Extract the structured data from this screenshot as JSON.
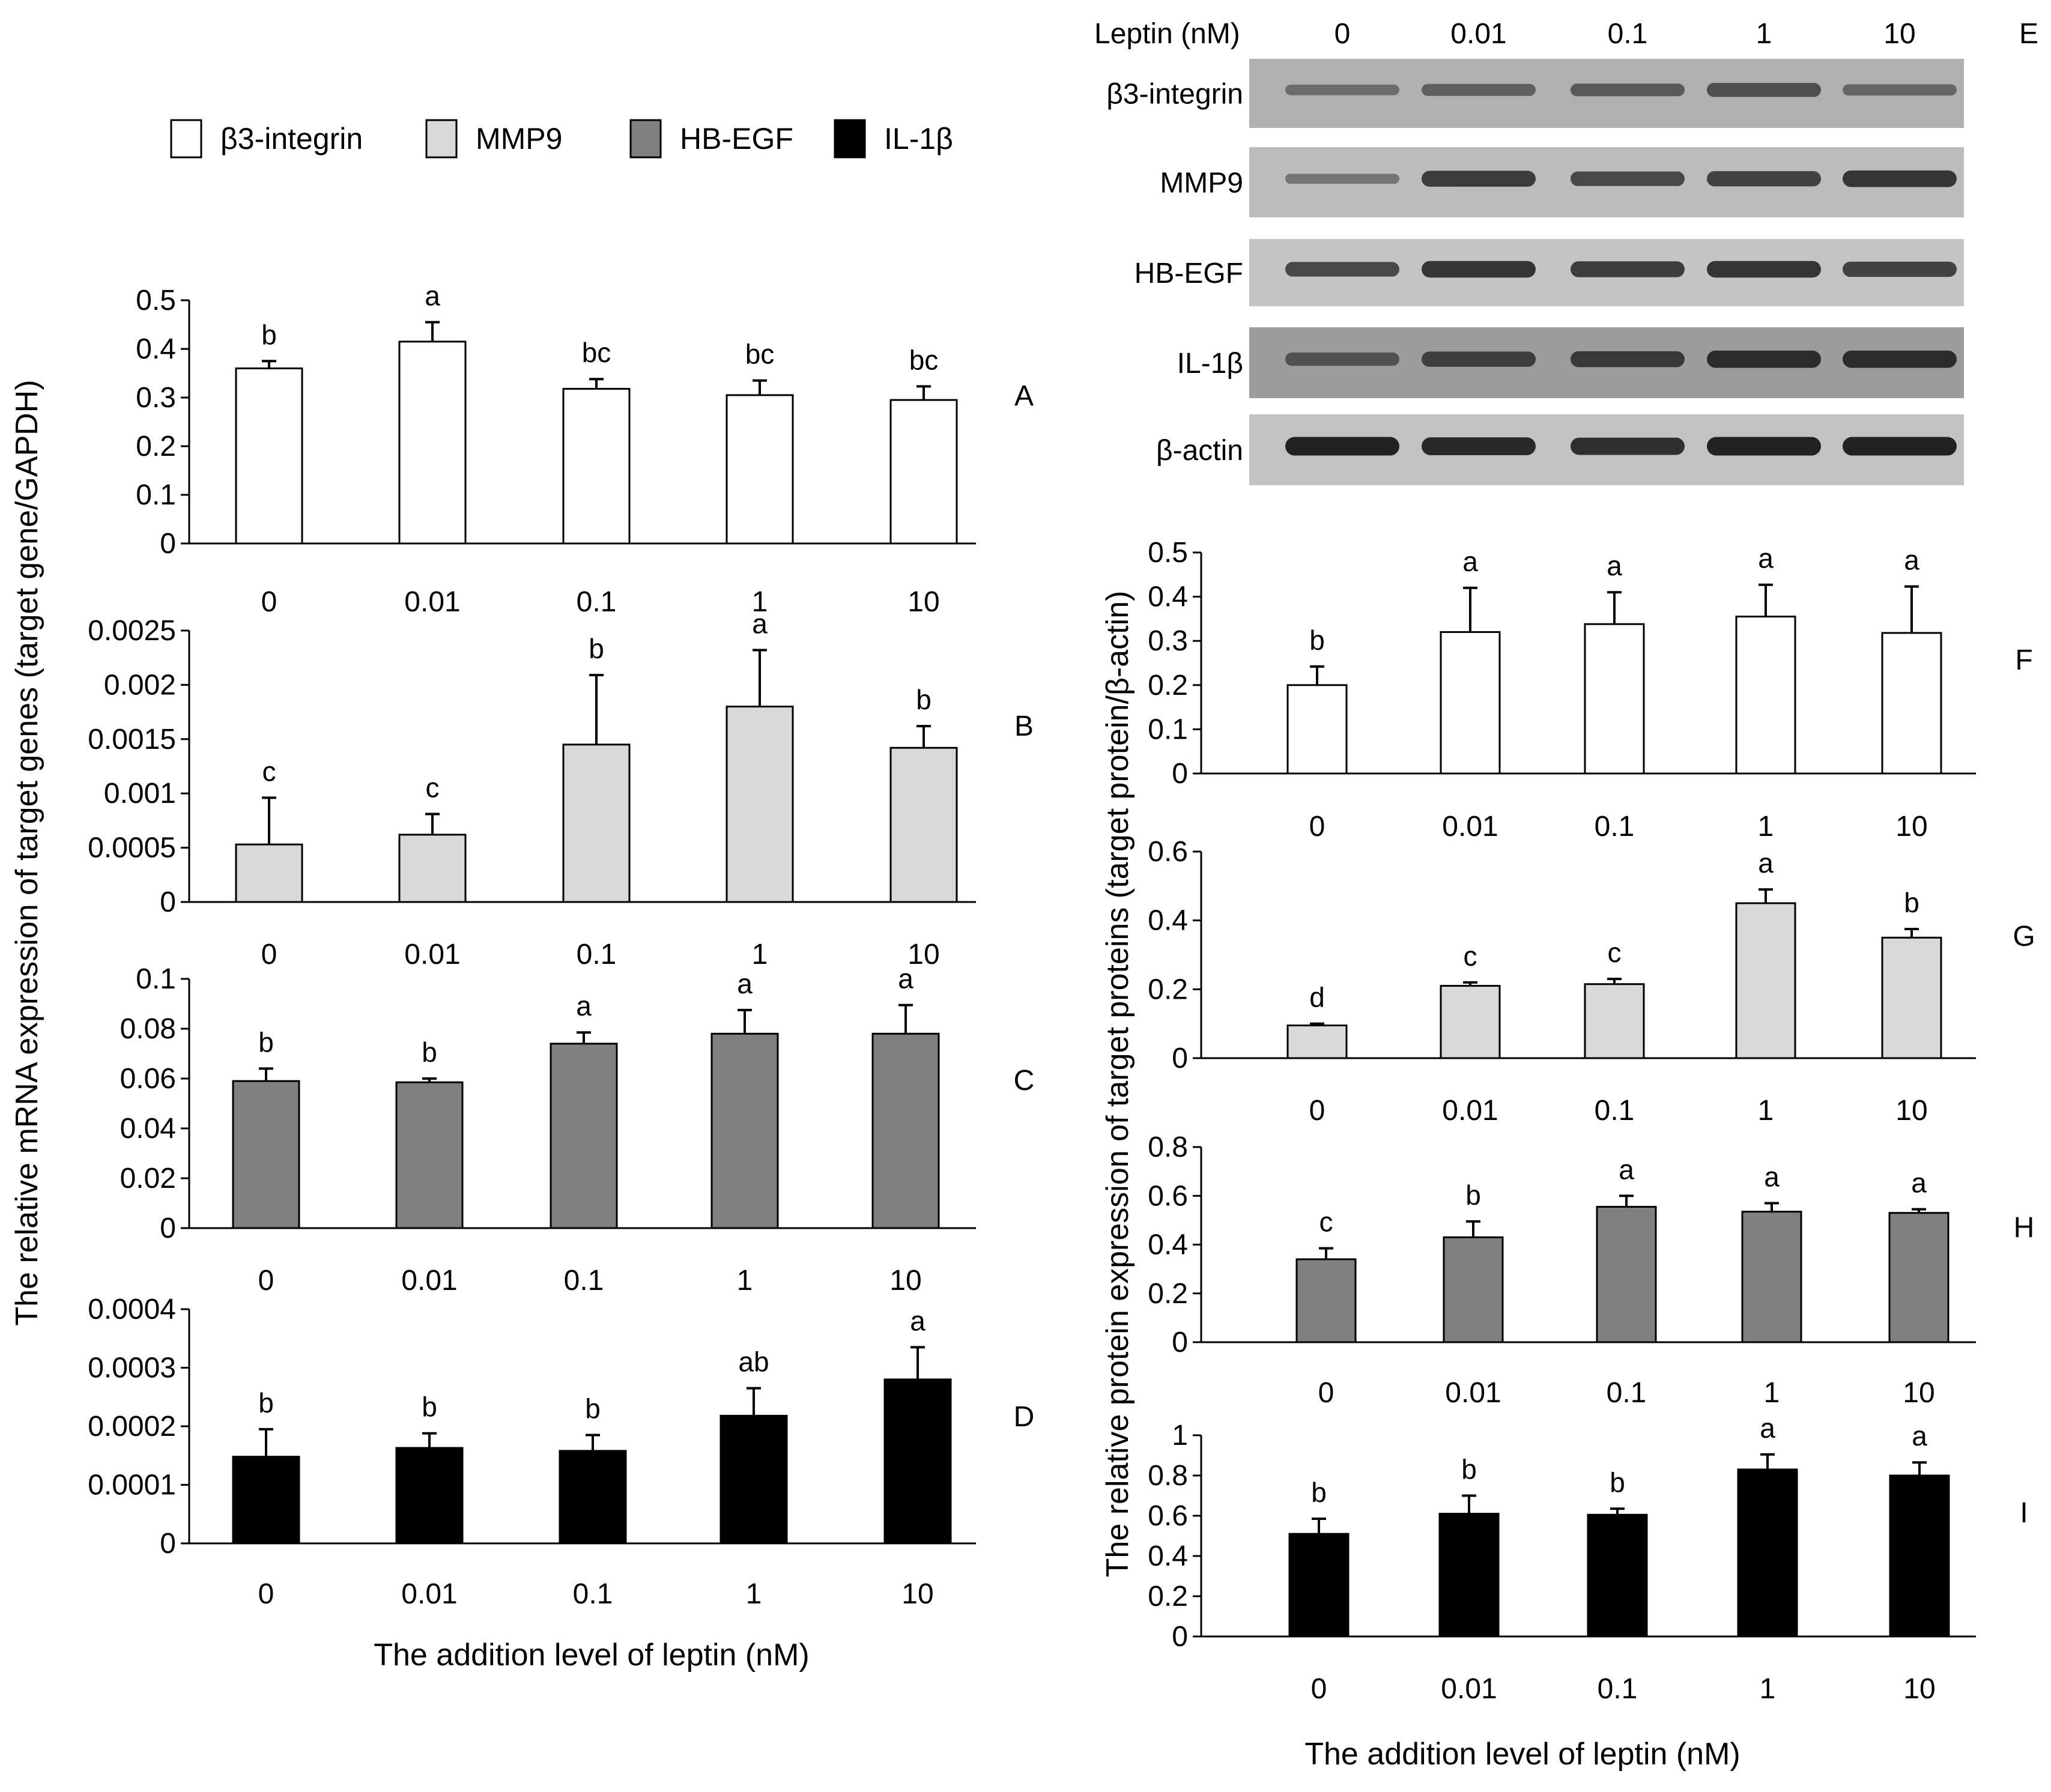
{
  "legend": [
    {
      "label": "β3-integrin",
      "color": "#ffffff"
    },
    {
      "label": "MMP9",
      "color": "#d9d9d9"
    },
    {
      "label": "HB-EGF",
      "color": "#808080"
    },
    {
      "label": "IL-1β",
      "color": "#000000"
    }
  ],
  "left_ylabel": "The relative mRNA expression  of target genes (target gene/GAPDH)",
  "left_xlabel": "The addition level of leptin (nM)",
  "right_ylabel": "The relative protein expression of target proteins  (target protein/β-actin)",
  "right_xlabel": "The addition level of leptin (nM)",
  "western_blot": {
    "panel": "E",
    "header_label": "Leptin (nM)",
    "doses": [
      "0",
      "0.01",
      "0.1",
      "1",
      "10"
    ],
    "rows": [
      {
        "label": "β3-integrin",
        "intensity": [
          0.35,
          0.45,
          0.5,
          0.6,
          0.4
        ],
        "bg": "#b0b0b0"
      },
      {
        "label": "MMP9",
        "intensity": [
          0.3,
          0.75,
          0.65,
          0.7,
          0.8
        ],
        "bg": "#bcbcbc"
      },
      {
        "label": "HB-EGF",
        "intensity": [
          0.65,
          0.8,
          0.75,
          0.8,
          0.7
        ],
        "bg": "#c4c4c4"
      },
      {
        "label": "IL-1β",
        "intensity": [
          0.55,
          0.7,
          0.75,
          0.85,
          0.85
        ],
        "bg": "#9c9c9c"
      },
      {
        "label": "β-actin",
        "intensity": [
          0.95,
          0.9,
          0.85,
          0.95,
          0.95
        ],
        "bg": "#c2c2c2"
      }
    ]
  },
  "chart_data": [
    {
      "panel": "A",
      "type": "bar",
      "series": "β3-integrin",
      "color": "#ffffff",
      "categories": [
        "0",
        "0.01",
        "0.1",
        "1",
        "10"
      ],
      "values": [
        0.36,
        0.415,
        0.318,
        0.305,
        0.295
      ],
      "errors": [
        0.015,
        0.04,
        0.02,
        0.03,
        0.028
      ],
      "letters": [
        "b",
        "a",
        "bc",
        "bc",
        "bc"
      ],
      "ylim": [
        0,
        0.5
      ],
      "yticks": [
        "0",
        "0.1",
        "0.2",
        "0.3",
        "0.4",
        "0.5"
      ]
    },
    {
      "panel": "B",
      "type": "bar",
      "series": "MMP9",
      "color": "#d9d9d9",
      "categories": [
        "0",
        "0.01",
        "0.1",
        "1",
        "10"
      ],
      "values": [
        0.00053,
        0.00062,
        0.00145,
        0.0018,
        0.00142
      ],
      "errors": [
        0.00043,
        0.00019,
        0.00064,
        0.00052,
        0.0002
      ],
      "letters": [
        "c",
        "c",
        "b",
        "a",
        "b"
      ],
      "ylim": [
        0,
        0.0025
      ],
      "yticks": [
        "0",
        "0.0005",
        "0.001",
        "0.0015",
        "0.002",
        "0.0025"
      ]
    },
    {
      "panel": "C",
      "type": "bar",
      "series": "HB-EGF",
      "color": "#808080",
      "categories": [
        "0",
        "0.01",
        "0.1",
        "1",
        "10"
      ],
      "values": [
        0.059,
        0.0585,
        0.074,
        0.078,
        0.078
      ],
      "errors": [
        0.005,
        0.0015,
        0.0045,
        0.0095,
        0.0115
      ],
      "letters": [
        "b",
        "b",
        "a",
        "a",
        "a"
      ],
      "ylim": [
        0,
        0.1
      ],
      "yticks": [
        "0",
        "0.02",
        "0.04",
        "0.06",
        "0.08",
        "0.1"
      ]
    },
    {
      "panel": "D",
      "type": "bar",
      "series": "IL-1β",
      "color": "#000000",
      "categories": [
        "0",
        "0.01",
        "0.1",
        "1",
        "10"
      ],
      "values": [
        0.000148,
        0.000163,
        0.000158,
        0.000218,
        0.00028
      ],
      "errors": [
        4.7e-05,
        2.5e-05,
        2.7e-05,
        4.7e-05,
        5.5e-05
      ],
      "letters": [
        "b",
        "b",
        "b",
        "ab",
        "a"
      ],
      "ylim": [
        0,
        0.0004
      ],
      "yticks": [
        "0",
        "0.0001",
        "0.0002",
        "0.0003",
        "0.0004"
      ]
    },
    {
      "panel": "F",
      "type": "bar",
      "series": "β3-integrin",
      "color": "#ffffff",
      "categories": [
        "0",
        "0.01",
        "0.1",
        "1",
        "10"
      ],
      "values": [
        0.2,
        0.32,
        0.338,
        0.355,
        0.318
      ],
      "errors": [
        0.042,
        0.1,
        0.072,
        0.072,
        0.105
      ],
      "letters": [
        "b",
        "a",
        "a",
        "a",
        "a"
      ],
      "ylim": [
        0,
        0.5
      ],
      "yticks": [
        "0",
        "0.1",
        "0.2",
        "0.3",
        "0.4",
        "0.5"
      ]
    },
    {
      "panel": "G",
      "type": "bar",
      "series": "MMP9",
      "color": "#d9d9d9",
      "categories": [
        "0",
        "0.01",
        "0.1",
        "1",
        "10"
      ],
      "values": [
        0.095,
        0.21,
        0.215,
        0.45,
        0.35
      ],
      "errors": [
        0.005,
        0.01,
        0.015,
        0.04,
        0.025
      ],
      "letters": [
        "d",
        "c",
        "c",
        "a",
        "b"
      ],
      "ylim": [
        0,
        0.6
      ],
      "yticks": [
        "0",
        "0.2",
        "0.4",
        "0.6"
      ]
    },
    {
      "panel": "H",
      "type": "bar",
      "series": "HB-EGF",
      "color": "#808080",
      "categories": [
        "0",
        "0.01",
        "0.1",
        "1",
        "10"
      ],
      "values": [
        0.34,
        0.43,
        0.555,
        0.535,
        0.53
      ],
      "errors": [
        0.045,
        0.065,
        0.045,
        0.035,
        0.015
      ],
      "letters": [
        "c",
        "b",
        "a",
        "a",
        "a"
      ],
      "ylim": [
        0,
        0.8
      ],
      "yticks": [
        "0",
        "0.2",
        "0.4",
        "0.6",
        "0.8"
      ]
    },
    {
      "panel": "I",
      "type": "bar",
      "series": "IL-1β",
      "color": "#000000",
      "categories": [
        "0",
        "0.01",
        "0.1",
        "1",
        "10"
      ],
      "values": [
        0.51,
        0.61,
        0.605,
        0.83,
        0.8
      ],
      "errors": [
        0.075,
        0.09,
        0.03,
        0.075,
        0.065
      ],
      "letters": [
        "b",
        "b",
        "b",
        "a",
        "a"
      ],
      "ylim": [
        0,
        1
      ],
      "yticks": [
        "0",
        "0.2",
        "0.4",
        "0.6",
        "0.8",
        "1"
      ]
    }
  ]
}
